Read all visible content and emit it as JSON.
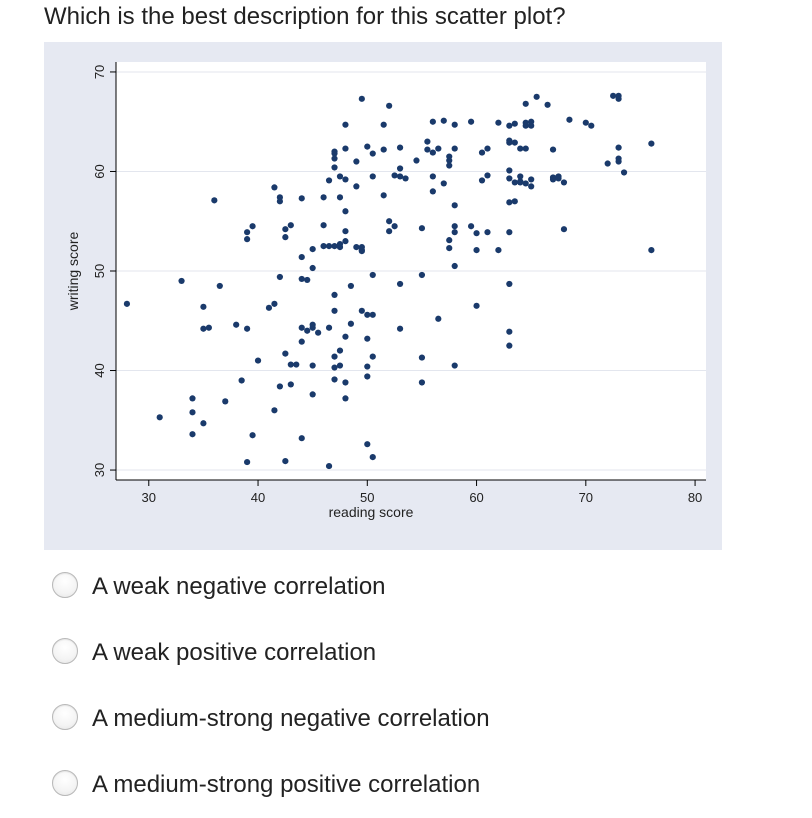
{
  "question": {
    "title": "Which is the best description for this scatter plot?"
  },
  "chart_data": {
    "type": "scatter",
    "title": "",
    "xlabel": "reading score",
    "ylabel": "writing score",
    "xlim": [
      27,
      81
    ],
    "ylim": [
      29,
      71
    ],
    "xticks": [
      30,
      40,
      50,
      60,
      70,
      80
    ],
    "yticks": [
      30,
      40,
      50,
      60,
      70
    ],
    "grid": true,
    "marker_color": "#1a3a6b",
    "points": [
      [
        28,
        46.7
      ],
      [
        31,
        35.3
      ],
      [
        33,
        49.0
      ],
      [
        34,
        35.8
      ],
      [
        34,
        33.6
      ],
      [
        34,
        37.2
      ],
      [
        35,
        44.2
      ],
      [
        35,
        46.4
      ],
      [
        35,
        34.7
      ],
      [
        35.5,
        44.3
      ],
      [
        36,
        57.1
      ],
      [
        36.5,
        48.5
      ],
      [
        37,
        36.9
      ],
      [
        38,
        44.6
      ],
      [
        38.5,
        39.0
      ],
      [
        39,
        53.2
      ],
      [
        39,
        53.9
      ],
      [
        39,
        30.8
      ],
      [
        39,
        44.2
      ],
      [
        39.5,
        54.5
      ],
      [
        39.5,
        33.5
      ],
      [
        40,
        41.0
      ],
      [
        41,
        46.3
      ],
      [
        41.5,
        58.4
      ],
      [
        41.5,
        46.7
      ],
      [
        41.5,
        36.0
      ],
      [
        42,
        57.4
      ],
      [
        42,
        57.0
      ],
      [
        42,
        38.4
      ],
      [
        42,
        49.4
      ],
      [
        42.5,
        30.9
      ],
      [
        42.5,
        53.4
      ],
      [
        42.5,
        54.2
      ],
      [
        42.5,
        41.7
      ],
      [
        43,
        54.6
      ],
      [
        43,
        38.6
      ],
      [
        43,
        40.6
      ],
      [
        43.5,
        40.6
      ],
      [
        44,
        57.3
      ],
      [
        44,
        51.4
      ],
      [
        44,
        49.2
      ],
      [
        44,
        44.3
      ],
      [
        44,
        42.9
      ],
      [
        44,
        33.2
      ],
      [
        44.5,
        49.1
      ],
      [
        44.5,
        44.0
      ],
      [
        45,
        50.3
      ],
      [
        45,
        52.2
      ],
      [
        45,
        44.6
      ],
      [
        45,
        44.3
      ],
      [
        45,
        40.5
      ],
      [
        45,
        37.6
      ],
      [
        45.5,
        43.8
      ],
      [
        46,
        54.6
      ],
      [
        46,
        57.4
      ],
      [
        46,
        52.5
      ],
      [
        46.5,
        59.1
      ],
      [
        46.5,
        52.5
      ],
      [
        46.5,
        44.3
      ],
      [
        46.5,
        30.4
      ],
      [
        47,
        62.0
      ],
      [
        47,
        61.8
      ],
      [
        47,
        61.3
      ],
      [
        47,
        60.4
      ],
      [
        47,
        52.5
      ],
      [
        47,
        47.6
      ],
      [
        47,
        46.0
      ],
      [
        47,
        41.4
      ],
      [
        47,
        40.3
      ],
      [
        47,
        39.1
      ],
      [
        47.5,
        59.5
      ],
      [
        47.5,
        57.4
      ],
      [
        47.5,
        52.4
      ],
      [
        47.5,
        52.7
      ],
      [
        47.5,
        42.0
      ],
      [
        47.5,
        40.5
      ],
      [
        48,
        64.7
      ],
      [
        48,
        62.3
      ],
      [
        48,
        59.2
      ],
      [
        48,
        56.0
      ],
      [
        48,
        54.0
      ],
      [
        48,
        53.0
      ],
      [
        48,
        43.4
      ],
      [
        48,
        38.8
      ],
      [
        48,
        37.2
      ],
      [
        48.5,
        44.7
      ],
      [
        48.5,
        48.5
      ],
      [
        49,
        61.0
      ],
      [
        49,
        58.5
      ],
      [
        49,
        52.4
      ],
      [
        49.5,
        67.3
      ],
      [
        49.5,
        52.4
      ],
      [
        49.5,
        52.0
      ],
      [
        49.5,
        52.1
      ],
      [
        49.5,
        46.0
      ],
      [
        50,
        62.5
      ],
      [
        50,
        45.6
      ],
      [
        50,
        43.2
      ],
      [
        50,
        40.4
      ],
      [
        50,
        39.4
      ],
      [
        50,
        32.6
      ],
      [
        50.5,
        61.8
      ],
      [
        50.5,
        59.5
      ],
      [
        50.5,
        49.6
      ],
      [
        50.5,
        45.6
      ],
      [
        50.5,
        41.4
      ],
      [
        50.5,
        31.3
      ],
      [
        51.5,
        64.7
      ],
      [
        51.5,
        62.2
      ],
      [
        51.5,
        57.6
      ],
      [
        52,
        66.6
      ],
      [
        52,
        55.0
      ],
      [
        52,
        54.0
      ],
      [
        52.5,
        59.6
      ],
      [
        52.5,
        54.5
      ],
      [
        53,
        62.4
      ],
      [
        53,
        60.3
      ],
      [
        53,
        59.5
      ],
      [
        53,
        48.7
      ],
      [
        53,
        44.2
      ],
      [
        53.5,
        59.3
      ],
      [
        54.5,
        61.1
      ],
      [
        55,
        49.6
      ],
      [
        55,
        41.3
      ],
      [
        55,
        38.8
      ],
      [
        55,
        54.3
      ],
      [
        55.5,
        62.2
      ],
      [
        55.5,
        63.0
      ],
      [
        56,
        65.0
      ],
      [
        56,
        61.9
      ],
      [
        56,
        59.5
      ],
      [
        56,
        58.0
      ],
      [
        56.5,
        62.3
      ],
      [
        56.5,
        45.2
      ],
      [
        57,
        65.1
      ],
      [
        57,
        58.8
      ],
      [
        57.5,
        61.5
      ],
      [
        57.5,
        61.1
      ],
      [
        57.5,
        60.6
      ],
      [
        57.5,
        52.3
      ],
      [
        57.5,
        53.1
      ],
      [
        58,
        64.7
      ],
      [
        58,
        62.3
      ],
      [
        58,
        54.5
      ],
      [
        58,
        53.9
      ],
      [
        58,
        56.6
      ],
      [
        58,
        50.5
      ],
      [
        58,
        40.5
      ],
      [
        59.5,
        65.0
      ],
      [
        59.5,
        54.5
      ],
      [
        60,
        53.8
      ],
      [
        60,
        52.1
      ],
      [
        60,
        46.5
      ],
      [
        60.5,
        61.9
      ],
      [
        60.5,
        59.1
      ],
      [
        61,
        62.3
      ],
      [
        61,
        59.6
      ],
      [
        61,
        53.9
      ],
      [
        62,
        64.9
      ],
      [
        62,
        52.1
      ],
      [
        63,
        64.6
      ],
      [
        63,
        63.1
      ],
      [
        63,
        62.9
      ],
      [
        63,
        60.1
      ],
      [
        63,
        59.3
      ],
      [
        63,
        56.9
      ],
      [
        63,
        53.9
      ],
      [
        63,
        48.7
      ],
      [
        63,
        43.9
      ],
      [
        63,
        42.5
      ],
      [
        63.5,
        64.8
      ],
      [
        63.5,
        62.9
      ],
      [
        63.5,
        58.9
      ],
      [
        63.5,
        57.0
      ],
      [
        64,
        62.3
      ],
      [
        64,
        59.5
      ],
      [
        64,
        59.0
      ],
      [
        64,
        58.9
      ],
      [
        64.5,
        66.8
      ],
      [
        64.5,
        64.9
      ],
      [
        64.5,
        64.6
      ],
      [
        64.5,
        62.3
      ],
      [
        64.5,
        58.8
      ],
      [
        65,
        65.0
      ],
      [
        65,
        64.6
      ],
      [
        65,
        59.2
      ],
      [
        65,
        58.5
      ],
      [
        65.5,
        67.5
      ],
      [
        66.5,
        66.7
      ],
      [
        67,
        59.4
      ],
      [
        67,
        59.2
      ],
      [
        67,
        62.2
      ],
      [
        67.5,
        59.3
      ],
      [
        67.5,
        59.5
      ],
      [
        68,
        58.9
      ],
      [
        68,
        54.2
      ],
      [
        68.5,
        65.2
      ],
      [
        70,
        64.9
      ],
      [
        70.5,
        64.6
      ],
      [
        72,
        60.8
      ],
      [
        72.5,
        67.6
      ],
      [
        73,
        67.3
      ],
      [
        73,
        67.6
      ],
      [
        73,
        62.4
      ],
      [
        73,
        61.3
      ],
      [
        73,
        61.0
      ],
      [
        73.5,
        59.9
      ],
      [
        76,
        62.8
      ],
      [
        76,
        52.1
      ]
    ]
  },
  "answers": [
    {
      "label": "A weak negative correlation"
    },
    {
      "label": "A weak positive correlation"
    },
    {
      "label": "A medium-strong negative correlation"
    },
    {
      "label": "A medium-strong positive correlation"
    }
  ]
}
